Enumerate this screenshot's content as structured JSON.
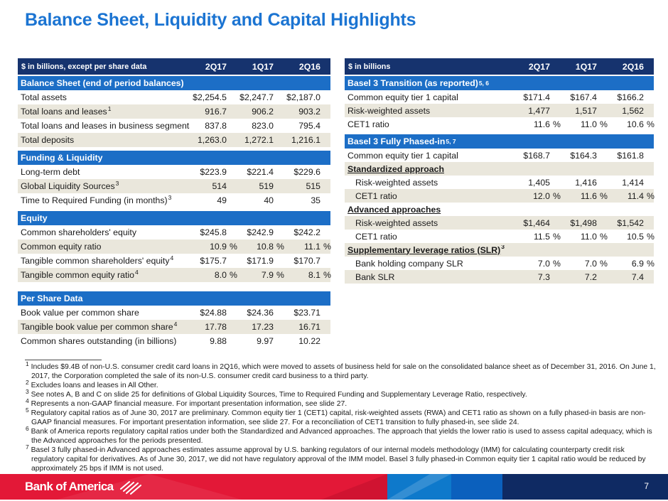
{
  "page": {
    "title": "Balance Sheet, Liquidity and Capital Highlights",
    "page_number": "7"
  },
  "colors": {
    "title_blue": "#1B74D2",
    "header_navy": "#16336E",
    "section_blue": "#1C6EC6",
    "row_beige": "#EAE7DC",
    "footer_red": "#E31837",
    "footer_light_blue": "#0E79CB",
    "footer_mid_blue": "#0B60BD",
    "footer_navy": "#0F2A63"
  },
  "tables": [
    {
      "name": "balance-sheet-table",
      "unit_label": "$ in billions, except per share data",
      "columns": [
        "2Q17",
        "1Q17",
        "2Q16"
      ],
      "rows": [
        {
          "type": "section",
          "label": "Balance Sheet (end of period balances)"
        },
        {
          "type": "data",
          "label": "Total assets",
          "values": [
            "$2,254.5",
            "$2,247.7",
            "$2,187.0"
          ]
        },
        {
          "type": "data",
          "label": "Total loans and leases",
          "sup": "1",
          "shade": true,
          "values": [
            "916.7",
            "906.2",
            "903.2"
          ]
        },
        {
          "type": "data",
          "label": "Total loans and leases in business segments",
          "sup": "2",
          "values": [
            "837.8",
            "823.0",
            "795.4"
          ]
        },
        {
          "type": "data",
          "label": "Total deposits",
          "shade": true,
          "values": [
            "1,263.0",
            "1,272.1",
            "1,216.1"
          ]
        },
        {
          "type": "gap"
        },
        {
          "type": "section",
          "label": "Funding & Liquidity"
        },
        {
          "type": "data",
          "label": "Long-term debt",
          "values": [
            "$223.9",
            "$221.4",
            "$229.6"
          ]
        },
        {
          "type": "data",
          "label": "Global Liquidity Sources",
          "sup": "3",
          "shade": true,
          "values": [
            "514",
            "519",
            "515"
          ]
        },
        {
          "type": "data",
          "label": "Time to Required Funding (in months)",
          "sup": "3",
          "values": [
            "49",
            "40",
            "35"
          ]
        },
        {
          "type": "gap"
        },
        {
          "type": "section",
          "label": "Equity"
        },
        {
          "type": "data",
          "label": "Common shareholders' equity",
          "values": [
            "$245.8",
            "$242.9",
            "$242.2"
          ]
        },
        {
          "type": "data",
          "label": "Common equity ratio",
          "shade": true,
          "values": [
            "10.9",
            "10.8",
            "11.1"
          ],
          "pcts": [
            "%",
            "%",
            "%"
          ]
        },
        {
          "type": "data",
          "label": "Tangible common shareholders' equity",
          "sup": "4",
          "values": [
            "$175.7",
            "$171.9",
            "$170.7"
          ]
        },
        {
          "type": "data",
          "label": "Tangible common equity ratio",
          "sup": "4",
          "shade": true,
          "values": [
            "8.0",
            "7.9",
            "8.1"
          ],
          "pcts": [
            "%",
            "%",
            "%"
          ]
        },
        {
          "type": "gap",
          "size": "large"
        },
        {
          "type": "section",
          "label": "Per Share Data"
        },
        {
          "type": "data",
          "label": "Book value per common share",
          "values": [
            "$24.88",
            "$24.36",
            "$23.71"
          ]
        },
        {
          "type": "data",
          "label": "Tangible book value per common share",
          "sup": "4",
          "shade": true,
          "values": [
            "17.78",
            "17.23",
            "16.71"
          ]
        },
        {
          "type": "data",
          "label": "Common shares outstanding (in billions)",
          "values": [
            "9.88",
            "9.97",
            "10.22"
          ]
        }
      ]
    },
    {
      "name": "capital-table",
      "unit_label": "$ in billions",
      "columns": [
        "2Q17",
        "1Q17",
        "2Q16"
      ],
      "rows": [
        {
          "type": "section",
          "label": "Basel 3 Transition (as reported)",
          "sup": "5, 6"
        },
        {
          "type": "data",
          "label": "Common equity tier 1 capital",
          "values": [
            "$171.4",
            "$167.4",
            "$166.2"
          ]
        },
        {
          "type": "data",
          "label": "Risk-weighted assets",
          "shade": true,
          "values": [
            "1,477",
            "1,517",
            "1,562"
          ]
        },
        {
          "type": "data",
          "label": "CET1 ratio",
          "values": [
            "11.6",
            "11.0",
            "10.6"
          ],
          "pcts": [
            "%",
            "%",
            "%"
          ]
        },
        {
          "type": "gap"
        },
        {
          "type": "section",
          "label": "Basel 3 Fully Phased-in",
          "sup": "5, 7"
        },
        {
          "type": "data",
          "label": "Common equity tier 1 capital",
          "values": [
            "$168.7",
            "$164.3",
            "$161.8"
          ]
        },
        {
          "type": "subheader",
          "label": "Standardized approach",
          "shade": true
        },
        {
          "type": "data",
          "label": "Risk-weighted assets",
          "indent": true,
          "values": [
            "1,405",
            "1,416",
            "1,414"
          ]
        },
        {
          "type": "data",
          "label": "CET1 ratio",
          "indent": true,
          "shade": true,
          "values": [
            "12.0",
            "11.6",
            "11.4"
          ],
          "pcts": [
            "%",
            "%",
            "%"
          ]
        },
        {
          "type": "subheader",
          "label": "Advanced approaches"
        },
        {
          "type": "data",
          "label": "Risk-weighted assets",
          "indent": true,
          "shade": true,
          "values": [
            "$1,464",
            "$1,498",
            "$1,542"
          ]
        },
        {
          "type": "data",
          "label": "CET1 ratio",
          "indent": true,
          "values": [
            "11.5",
            "11.0",
            "10.5"
          ],
          "pcts": [
            "%",
            "%",
            "%"
          ]
        },
        {
          "type": "subheader",
          "label": "Supplementary leverage ratios (SLR)",
          "sup": "3",
          "shade": true
        },
        {
          "type": "data",
          "label": "Bank holding company SLR",
          "indent": true,
          "values": [
            "7.0",
            "7.0",
            "6.9"
          ],
          "pcts": [
            "%",
            "%",
            "%"
          ]
        },
        {
          "type": "data",
          "label": "Bank SLR",
          "indent": true,
          "shade": true,
          "values": [
            "7.3",
            "7.2",
            "7.4"
          ]
        }
      ]
    }
  ],
  "footnotes": [
    {
      "num": "1",
      "text": "Includes $9.4B of non-U.S. consumer credit card loans in 2Q16, which were moved to assets of business held for sale on the consolidated balance sheet as of December 31, 2016. On June 1, 2017, the Corporation completed the sale of its non-U.S. consumer credit card business to a third party."
    },
    {
      "num": "2",
      "text": "Excludes loans and leases in All Other."
    },
    {
      "num": "3",
      "text": "See notes A, B and C on slide 25 for definitions of Global Liquidity Sources, Time to Required Funding and Supplementary Leverage Ratio, respectively."
    },
    {
      "num": "4",
      "text": "Represents a non-GAAP financial measure. For important presentation information, see slide 27."
    },
    {
      "num": "5",
      "text": "Regulatory capital ratios as of June 30, 2017 are preliminary. Common equity tier 1 (CET1) capital, risk-weighted assets (RWA) and CET1 ratio as shown on a fully phased-in basis are non-GAAP financial measures. For important presentation information, see slide 27. For a reconciliation of CET1 transition to fully phased-in, see slide 24."
    },
    {
      "num": "6",
      "text": "Bank of America reports regulatory capital ratios under both the Standardized and Advanced approaches. The approach that yields the lower ratio is used to assess capital adequacy, which is the Advanced approaches for the periods presented."
    },
    {
      "num": "7",
      "text": "Basel 3 fully phased-in Advanced approaches estimates assume approval by U.S. banking regulators of our internal models methodology (IMM) for calculating counterparty credit risk regulatory capital for derivatives. As of June 30, 2017, we did not have regulatory approval of the IMM model. Basel 3 fully phased-in Common equity tier 1 capital ratio would be reduced by approximately 25 bps if IMM is not used."
    }
  ],
  "footer": {
    "logo_text": "Bank of America",
    "flag_icon": "bofa-flag-icon"
  }
}
